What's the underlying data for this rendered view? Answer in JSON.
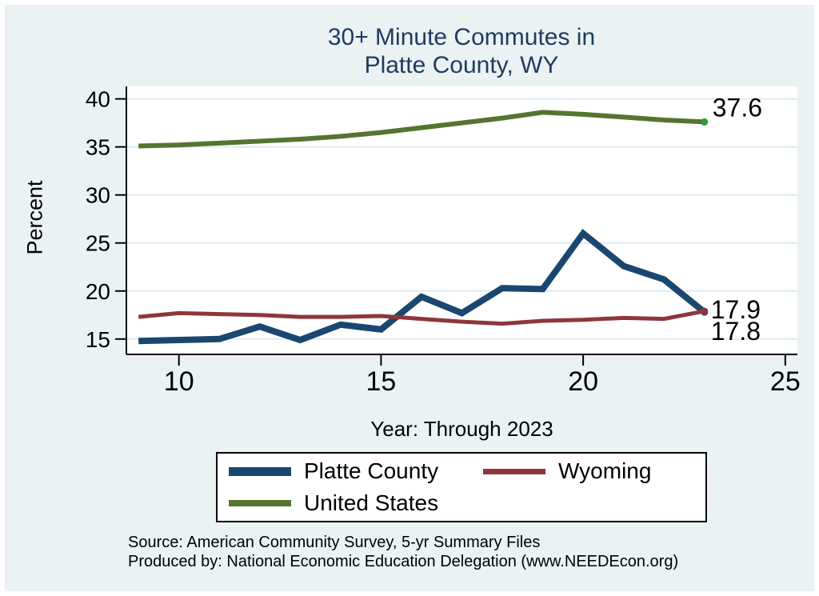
{
  "page": {
    "background": "#eaf2f3",
    "plot_background": "#ffffff",
    "gridline_color": "#ddebf2",
    "axis_color": "#000000",
    "title_color": "#1f3c61"
  },
  "title": {
    "line1": "30+ Minute Commutes in",
    "line2": "Platte County, WY"
  },
  "chart_data": {
    "type": "line",
    "title": "30+ Minute Commutes in Platte County, WY",
    "xlabel": "Year: Through 2023",
    "ylabel": "Percent",
    "grid": "horizontal",
    "legend_position": "bottom",
    "x": [
      9,
      10,
      11,
      12,
      13,
      14,
      15,
      16,
      17,
      18,
      19,
      20,
      21,
      22,
      23
    ],
    "xticks": [
      10,
      15,
      20,
      25
    ],
    "yticks": [
      15,
      20,
      25,
      30,
      35,
      40
    ],
    "xlim": [
      8.7,
      25.3
    ],
    "ylim": [
      13.4,
      41.3
    ],
    "series": [
      {
        "name": "Platte County",
        "color": "#1a476f",
        "width": 8,
        "swatch_height": 11,
        "end_label": "17.8",
        "end_label_offset": [
          8,
          35
        ],
        "values": [
          14.8,
          14.9,
          15.0,
          16.3,
          14.9,
          16.5,
          16.0,
          19.4,
          17.7,
          20.3,
          20.2,
          26.0,
          22.6,
          21.2,
          17.8
        ]
      },
      {
        "name": "Wyoming",
        "color": "#90353b",
        "width": 5,
        "swatch_height": 7,
        "end_label": "17.9",
        "end_label_offset": [
          8,
          9
        ],
        "values": [
          17.3,
          17.7,
          17.6,
          17.5,
          17.3,
          17.3,
          17.4,
          17.1,
          16.8,
          16.6,
          16.9,
          17.0,
          17.2,
          17.1,
          17.9
        ]
      },
      {
        "name": "United States",
        "color": "#55752f",
        "width": 6,
        "swatch_height": 8,
        "marker_color": "#2e9e2e",
        "end_label": "37.6",
        "end_label_offset": [
          10,
          -7
        ],
        "values": [
          35.1,
          35.2,
          35.4,
          35.6,
          35.8,
          36.1,
          36.5,
          37.0,
          37.5,
          38.0,
          38.6,
          38.4,
          38.1,
          37.8,
          37.6
        ]
      }
    ]
  },
  "source": {
    "line1": "Source: American Community Survey, 5-yr Summary Files",
    "line2": "Produced by: National Economic Education Delegation (www.NEEDEcon.org)"
  }
}
